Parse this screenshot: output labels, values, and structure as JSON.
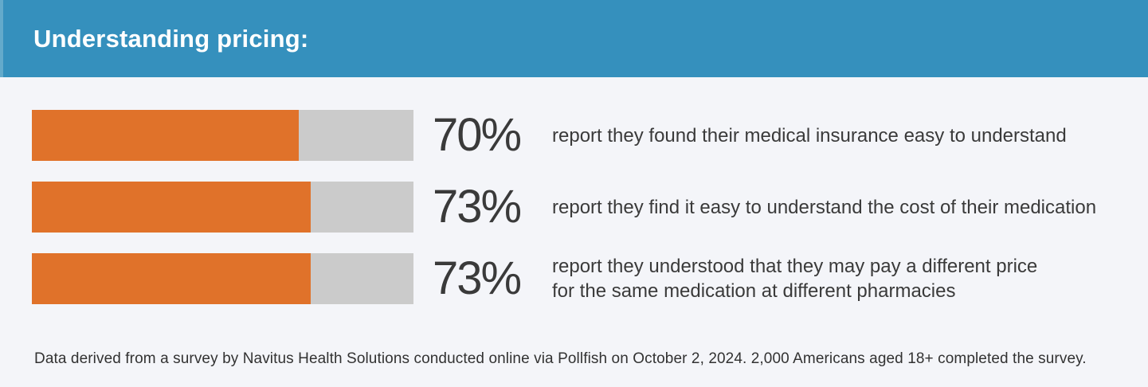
{
  "header": {
    "title": "Understanding pricing:"
  },
  "chart_data": {
    "type": "bar",
    "orientation": "horizontal",
    "title": "Understanding pricing:",
    "categories": [
      "report they found their medical insurance easy to understand",
      "report they find it easy to understand the cost of their medication",
      "report they understood that they may pay a different price for the same medication at different pharmacies"
    ],
    "values": [
      70,
      73,
      73
    ],
    "data_labels": [
      "70%",
      "73%",
      "73%"
    ],
    "value_unit": "%",
    "xlim": [
      0,
      100
    ],
    "grid": false,
    "legend": false,
    "bar_color": "#e0722a",
    "track_color": "#cbcbcb",
    "footnote": "Data derived from a survey by Navitus Health Solutions conducted online via Pollfish on October 2, 2024. 2,000 Americans aged 18+ completed the survey."
  },
  "rows": [
    {
      "percent": "70%",
      "value": 70,
      "description": "report they found their medical insurance easy to understand"
    },
    {
      "percent": "73%",
      "value": 73,
      "description": "report they find it easy to understand the cost of their medication"
    },
    {
      "percent": "73%",
      "value": 73,
      "description": "report they understood that they may pay a different price\nfor the same medication at different pharmacies"
    }
  ],
  "footer": {
    "note": "Data derived from a survey by Navitus Health Solutions conducted online via Pollfish on October 2, 2024. 2,000 Americans aged 18+ completed the survey."
  },
  "colors": {
    "header_bg": "#3590bd",
    "header_accent_stripe": "#63aacb",
    "page_bg": "#f4f5f9",
    "bar_fill": "#e0722a",
    "bar_track": "#cbcbcb",
    "text": "#3a3a3a",
    "header_text": "#ffffff"
  }
}
